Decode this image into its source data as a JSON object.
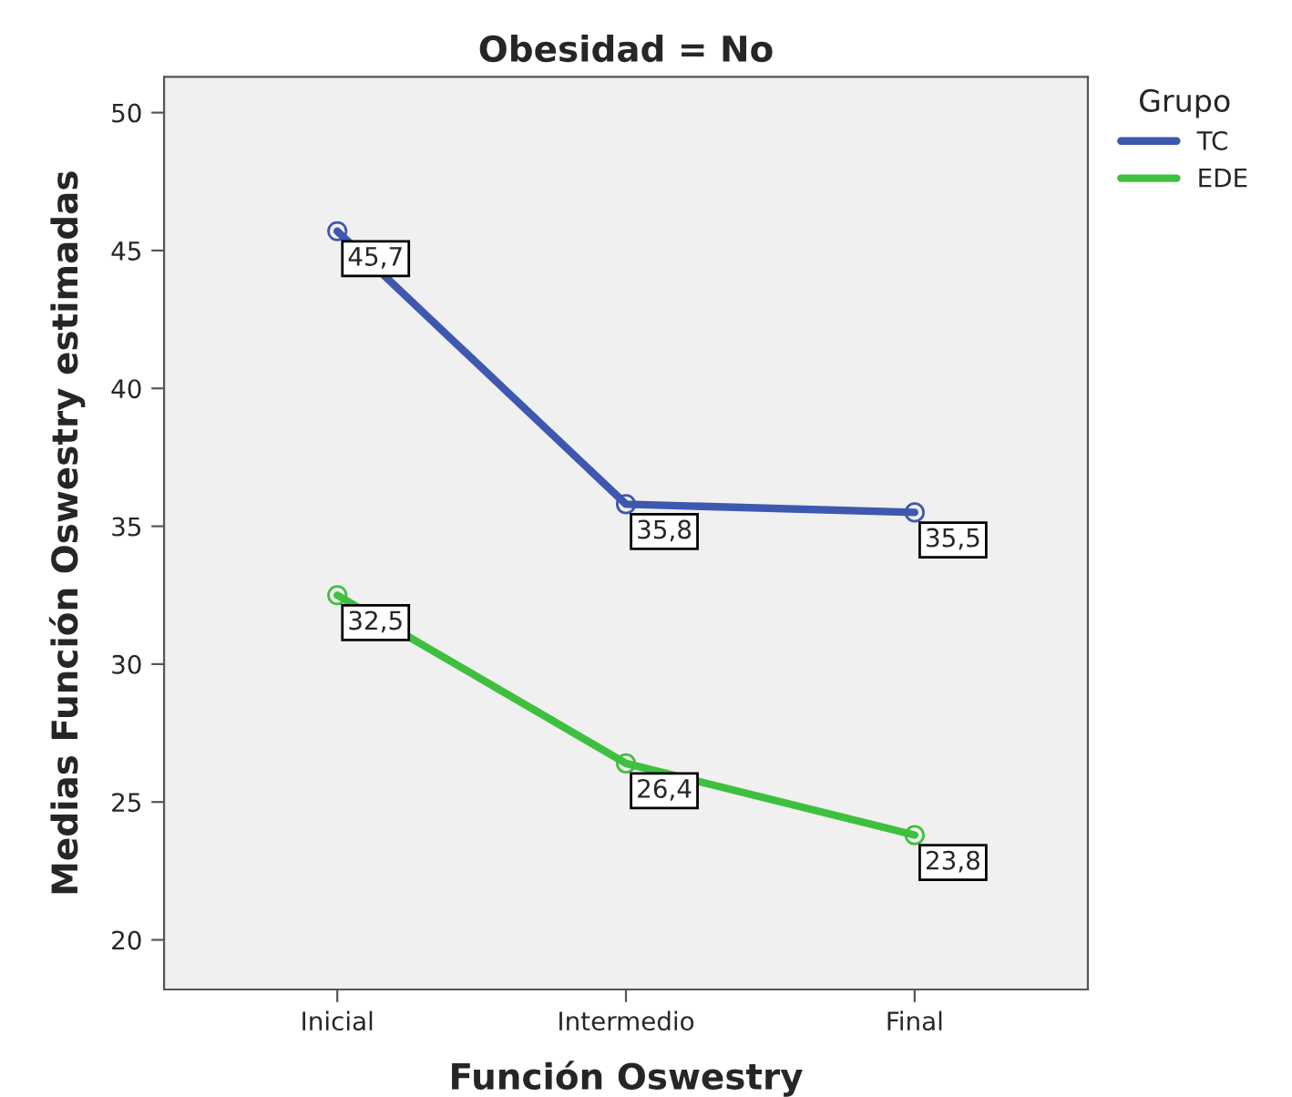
{
  "chart_data": {
    "type": "line",
    "title": "Obesidad = No",
    "xlabel": "Función Oswestry",
    "ylabel": "Medias Función Oswestry estimadas",
    "legend_title": "Grupo",
    "categories": [
      "Inicial",
      "Intermedio",
      "Final"
    ],
    "series": [
      {
        "name": "TC",
        "color": "#3e58b0",
        "values": [
          45.7,
          35.8,
          35.5
        ],
        "value_labels": [
          "45,7",
          "35,8",
          "35,5"
        ]
      },
      {
        "name": "EDE",
        "color": "#3fbf3f",
        "values": [
          32.5,
          26.4,
          23.8
        ],
        "value_labels": [
          "32,5",
          "26,4",
          "23,8"
        ]
      }
    ],
    "ylim": [
      18.2,
      51.3
    ],
    "yticks": [
      20,
      25,
      30,
      35,
      40,
      45,
      50
    ],
    "grid": false,
    "legend": "top right",
    "marker": "circle",
    "line_style": "solid"
  }
}
